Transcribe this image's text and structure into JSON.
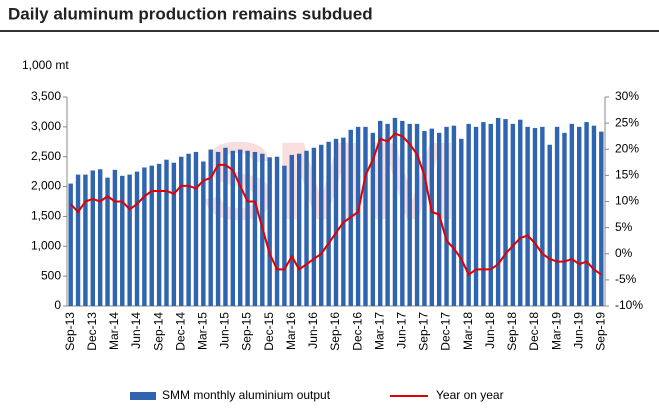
{
  "chart_data": {
    "type": "bar_line",
    "title": "Daily aluminum production remains subdued",
    "y_label": "1,000 mt",
    "categories": [
      "Sep-13",
      null,
      null,
      "Dec-13",
      null,
      null,
      "Mar-14",
      null,
      null,
      "Jun-14",
      null,
      null,
      "Sep-14",
      null,
      null,
      "Dec-14",
      null,
      null,
      "Mar-15",
      null,
      null,
      "Jun-15",
      null,
      null,
      "Sep-15",
      null,
      null,
      "Dec-15",
      null,
      null,
      "Mar-16",
      null,
      null,
      "Jun-16",
      null,
      null,
      "Sep-16",
      null,
      null,
      "Dec-16",
      null,
      null,
      "Mar-17",
      null,
      null,
      "Jun-17",
      null,
      null,
      "Sep-17",
      null,
      null,
      "Dec-17",
      null,
      null,
      "Mar-18",
      null,
      null,
      "Jun-18",
      null,
      null,
      "Sep-18",
      null,
      null,
      "Dec-18",
      null,
      null,
      "Mar-19",
      null,
      null,
      "Jun-19",
      null,
      null,
      "Sep-19"
    ],
    "series": [
      {
        "name": "SMM monthly aluminium output",
        "color": "#2f64b0",
        "kind": "bar",
        "values": [
          2050,
          2200,
          2200,
          2270,
          2290,
          2150,
          2280,
          2180,
          2200,
          2250,
          2320,
          2350,
          2380,
          2450,
          2400,
          2500,
          2550,
          2580,
          2420,
          2620,
          2580,
          2650,
          2600,
          2620,
          2600,
          2580,
          2550,
          2490,
          2500,
          2350,
          2530,
          2550,
          2600,
          2650,
          2700,
          2750,
          2800,
          2820,
          2950,
          3000,
          3000,
          2900,
          3100,
          3050,
          3150,
          3100,
          3050,
          3050,
          2930,
          2970,
          2900,
          3000,
          3020,
          2800,
          3050,
          3000,
          3080,
          3050,
          3150,
          3130,
          3050,
          3120,
          3000,
          2980,
          3000,
          2700,
          3000,
          2900,
          3050,
          3000,
          3080,
          3020,
          2920
        ]
      },
      {
        "name": "Year on year",
        "color": "#e00000",
        "kind": "line",
        "axis": "y2",
        "values": [
          9.5,
          8,
          10,
          10.5,
          10,
          11,
          10,
          10,
          8.5,
          9.5,
          11,
          12,
          12,
          12,
          11.5,
          13,
          13,
          12.5,
          14,
          14.5,
          17,
          17,
          16,
          13,
          10,
          10,
          5,
          0,
          -3,
          -3,
          -0.5,
          -3,
          -2,
          -1,
          0,
          2,
          4,
          6,
          7,
          8,
          15,
          18,
          22,
          21.5,
          23,
          22.5,
          21,
          19,
          15,
          8,
          7.5,
          2.5,
          1,
          -1,
          -4,
          -3,
          -3,
          -3,
          -2,
          0,
          1.5,
          3,
          3.5,
          2,
          0,
          -1,
          -1.5,
          -1.5,
          -1,
          -2,
          -1.5,
          -3,
          -4
        ]
      }
    ],
    "ylim": [
      0,
      3500
    ],
    "yticks": [
      0,
      500,
      {
        "value": 1000,
        "label": "1,000"
      },
      {
        "value": 1500,
        "label": "1,500"
      },
      {
        "value": 2000,
        "label": "2,000"
      },
      {
        "value": 2500,
        "label": "2,500"
      },
      {
        "value": 3000,
        "label": "3,000"
      },
      {
        "value": 3500,
        "label": "3,500"
      }
    ],
    "y2lim": [
      -10,
      30
    ],
    "y2ticks": [
      {
        "value": -10,
        "label": "-10%"
      },
      {
        "value": -5,
        "label": "-5%"
      },
      {
        "value": 0,
        "label": "0%"
      },
      {
        "value": 5,
        "label": "5%"
      },
      {
        "value": 10,
        "label": "10%"
      },
      {
        "value": 15,
        "label": "15%"
      },
      {
        "value": 20,
        "label": "20%"
      },
      {
        "value": 25,
        "label": "25%"
      },
      {
        "value": 30,
        "label": "30%"
      }
    ],
    "legend": "bottom"
  }
}
